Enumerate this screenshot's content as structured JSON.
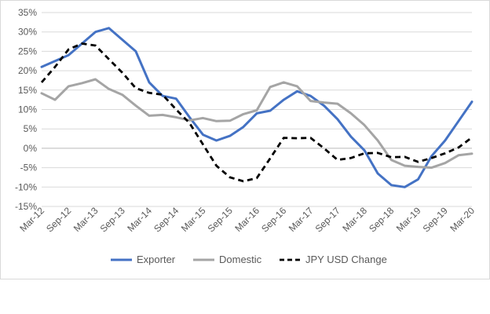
{
  "chart_data": {
    "type": "line",
    "title": "",
    "xlabel": "",
    "ylabel": "",
    "ylim": [
      -15,
      35
    ],
    "y_ticks": [
      35,
      30,
      25,
      20,
      15,
      10,
      5,
      0,
      -5,
      -10,
      -15
    ],
    "y_tick_labels": [
      "35%",
      "30%",
      "25%",
      "20%",
      "15%",
      "10%",
      "5%",
      "0%",
      "-5%",
      "-10%",
      "-15%"
    ],
    "x_tick_labels": [
      "Mar-12",
      "Sep-12",
      "Mar-13",
      "Sep-13",
      "Mar-14",
      "Sep-14",
      "Mar-15",
      "Sep-15",
      "Mar-16",
      "Sep-16",
      "Mar-17",
      "Sep-17",
      "Mar-18",
      "Sep-18",
      "Mar-19",
      "Sep-19",
      "Mar-20"
    ],
    "grid": "horizontal",
    "legend_position": "bottom",
    "series": [
      {
        "name": "Exporter",
        "color": "#4472c4",
        "style": "solid",
        "values": [
          21,
          22.5,
          24,
          27,
          30,
          31,
          28,
          25,
          17,
          13.5,
          12.8,
          8,
          3.5,
          2,
          3.2,
          5.5,
          9,
          9.7,
          12.5,
          14.7,
          13.5,
          11,
          7.5,
          3,
          -0.5,
          -6.5,
          -9.5,
          -10,
          -8,
          -2,
          2,
          7,
          12
        ]
      },
      {
        "name": "Domestic",
        "color": "#a5a5a5",
        "style": "solid",
        "values": [
          14.2,
          12.5,
          16,
          16.8,
          17.8,
          15.3,
          13.8,
          11,
          8.4,
          8.6,
          8,
          7.2,
          7.8,
          7,
          7.1,
          8.8,
          9.8,
          15.8,
          17,
          16,
          12.2,
          11.8,
          11.5,
          9,
          6,
          2,
          -3,
          -4.5,
          -4.8,
          -5,
          -3.8,
          -1.8,
          -1.4
        ]
      },
      {
        "name": "JPY USD Change",
        "color": "#000000",
        "style": "dashed",
        "values": [
          17,
          21,
          25.5,
          27,
          26.5,
          23,
          19.5,
          15.5,
          14.3,
          13.8,
          10,
          6.5,
          1,
          -4.5,
          -7.5,
          -8.5,
          -7.7,
          -2.6,
          2.7,
          2.6,
          2.7,
          0,
          -3,
          -2.5,
          -1.3,
          -1.2,
          -2.3,
          -2.2,
          -3.5,
          -2.5,
          -1.3,
          0.2,
          2.8
        ]
      }
    ]
  }
}
